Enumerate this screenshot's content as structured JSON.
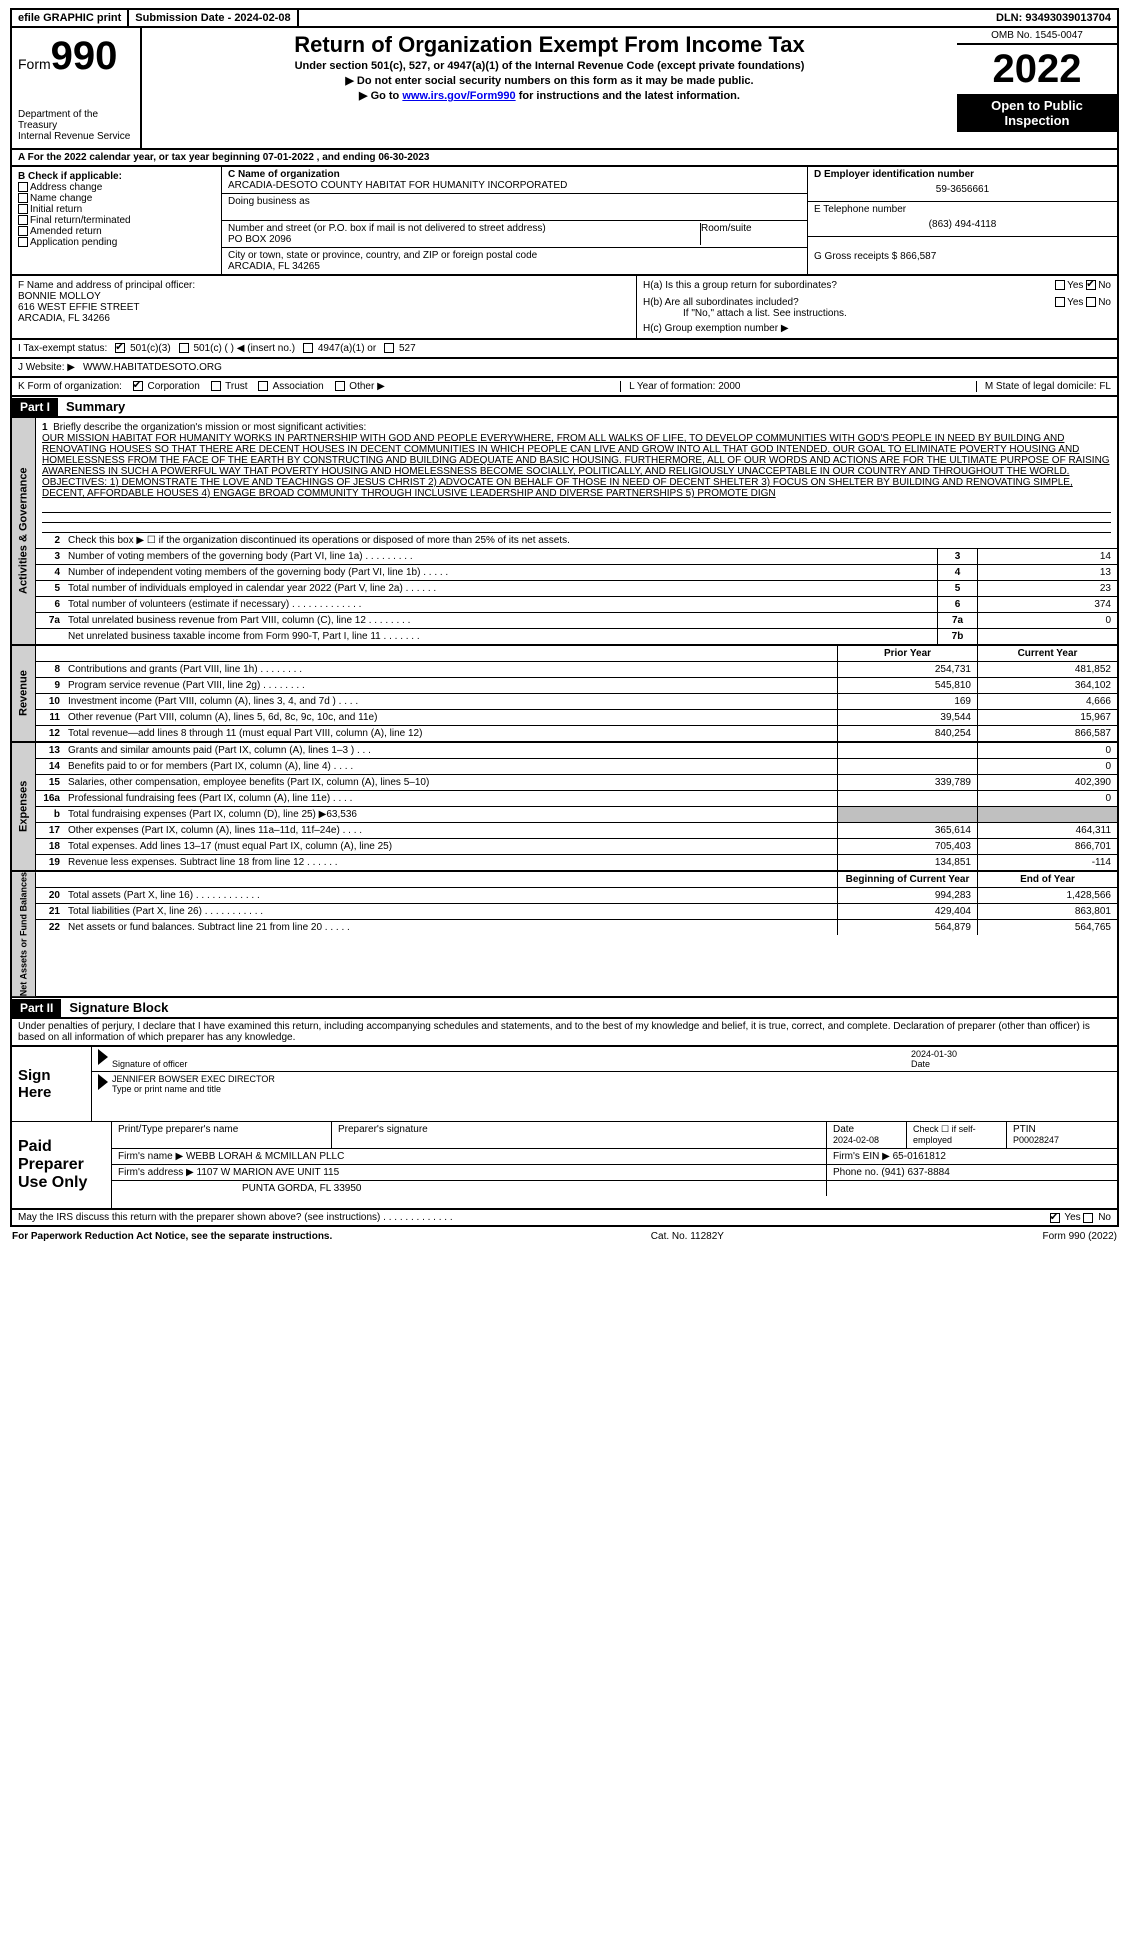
{
  "topbar": {
    "efile": "efile GRAPHIC print",
    "sub_label": "Submission Date - 2024-02-08",
    "dln": "DLN: 93493039013704"
  },
  "header": {
    "form_prefix": "Form",
    "form_num": "990",
    "dept": "Department of the Treasury",
    "irs": "Internal Revenue Service",
    "title": "Return of Organization Exempt From Income Tax",
    "sub1": "Under section 501(c), 527, or 4947(a)(1) of the Internal Revenue Code (except private foundations)",
    "sub2": "▶ Do not enter social security numbers on this form as it may be made public.",
    "sub3_pre": "▶ Go to ",
    "sub3_link": "www.irs.gov/Form990",
    "sub3_post": " for instructions and the latest information.",
    "omb": "OMB No. 1545-0047",
    "year": "2022",
    "open": "Open to Public Inspection"
  },
  "row_a": "A For the 2022 calendar year, or tax year beginning 07-01-2022   , and ending 06-30-2023",
  "b": {
    "label": "B Check if applicable:",
    "items": [
      "Address change",
      "Name change",
      "Initial return",
      "Final return/terminated",
      "Amended return",
      "Application pending"
    ]
  },
  "c": {
    "name_lbl": "C Name of organization",
    "name": "ARCADIA-DESOTO COUNTY HABITAT FOR HUMANITY INCORPORATED",
    "dba_lbl": "Doing business as",
    "dba": "",
    "addr_lbl": "Number and street (or P.O. box if mail is not delivered to street address)",
    "addr": "PO BOX 2096",
    "room_lbl": "Room/suite",
    "city_lbl": "City or town, state or province, country, and ZIP or foreign postal code",
    "city": "ARCADIA, FL  34265"
  },
  "d": {
    "lbl": "D Employer identification number",
    "val": "59-3656661"
  },
  "e": {
    "lbl": "E Telephone number",
    "val": "(863) 494-4118"
  },
  "g": {
    "lbl": "G Gross receipts $",
    "val": "866,587"
  },
  "f": {
    "lbl": "F  Name and address of principal officer:",
    "name": "BONNIE MOLLOY",
    "addr1": "616 WEST EFFIE STREET",
    "addr2": "ARCADIA, FL  34266"
  },
  "h": {
    "a_lbl": "H(a)  Is this a group return for subordinates?",
    "b_lbl": "H(b)  Are all subordinates included?",
    "b_note": "If \"No,\" attach a list. See instructions.",
    "c_lbl": "H(c)  Group exemption number ▶",
    "yes": "Yes",
    "no": "No"
  },
  "i": {
    "lbl": "I   Tax-exempt status:",
    "o1": "501(c)(3)",
    "o2": "501(c) (   ) ◀ (insert no.)",
    "o3": "4947(a)(1) or",
    "o4": "527"
  },
  "j": {
    "lbl": "J   Website: ▶",
    "val": "WWW.HABITATDESOTO.ORG"
  },
  "k": {
    "lbl": "K Form of organization:",
    "o1": "Corporation",
    "o2": "Trust",
    "o3": "Association",
    "o4": "Other ▶"
  },
  "l": {
    "lbl": "L Year of formation:",
    "val": "2000"
  },
  "m": {
    "lbl": "M State of legal domicile:",
    "val": "FL"
  },
  "part1": {
    "num": "Part I",
    "title": "Summary"
  },
  "summary": {
    "vtab1": "Activities & Governance",
    "vtab2": "Revenue",
    "vtab3": "Expenses",
    "vtab4": "Net Assets or Fund Balances",
    "line1_lbl": "Briefly describe the organization's mission or most significant activities:",
    "mission": "OUR MISSION HABITAT FOR HUMANITY WORKS IN PARTNERSHIP WITH GOD AND PEOPLE EVERYWHERE, FROM ALL WALKS OF LIFE, TO DEVELOP COMMUNITIES WITH GOD'S PEOPLE IN NEED BY BUILDING AND RENOVATING HOUSES SO THAT THERE ARE DECENT HOUSES IN DECENT COMMUNITIES IN WHICH PEOPLE CAN LIVE AND GROW INTO ALL THAT GOD INTENDED. OUR GOAL TO ELIMINATE POVERTY HOUSING AND HOMELESSNESS FROM THE FACE OF THE EARTH BY CONSTRUCTING AND BUILDING ADEQUATE AND BASIC HOUSING. FURTHERMORE, ALL OF OUR WORDS AND ACTIONS ARE FOR THE ULTIMATE PURPOSE OF RAISING AWARENESS IN SUCH A POWERFUL WAY THAT POVERTY HOUSING AND HOMELESSNESS BECOME SOCIALLY, POLITICALLY, AND RELIGIOUSLY UNACCEPTABLE IN OUR COUNTRY AND THROUGHOUT THE WORLD. OBJECTIVES: 1) DEMONSTRATE THE LOVE AND TEACHINGS OF JESUS CHRIST 2) ADVOCATE ON BEHALF OF THOSE IN NEED OF DECENT SHELTER 3) FOCUS ON SHELTER BY BUILDING AND RENOVATING SIMPLE, DECENT, AFFORDABLE HOUSES 4) ENGAGE BROAD COMMUNITY THROUGH INCLUSIVE LEADERSHIP AND DIVERSE PARTNERSHIPS 5) PROMOTE DIGN",
    "line2": "Check this box ▶ ☐ if the organization discontinued its operations or disposed of more than 25% of its net assets.",
    "rows_gov": [
      {
        "n": "3",
        "d": "Number of voting members of the governing body (Part VI, line 1a)  .   .   .   .   .   .   .   .   .",
        "c": "3",
        "v": "14"
      },
      {
        "n": "4",
        "d": "Number of independent voting members of the governing body (Part VI, line 1b)   .   .   .   .   .",
        "c": "4",
        "v": "13"
      },
      {
        "n": "5",
        "d": "Total number of individuals employed in calendar year 2022 (Part V, line 2a)   .   .   .   .   .   .",
        "c": "5",
        "v": "23"
      },
      {
        "n": "6",
        "d": "Total number of volunteers (estimate if necessary)  .   .   .   .   .   .   .   .   .   .   .   .   .",
        "c": "6",
        "v": "374"
      },
      {
        "n": "7a",
        "d": "Total unrelated business revenue from Part VIII, column (C), line 12   .   .   .   .   .   .   .   .",
        "c": "7a",
        "v": "0"
      },
      {
        "n": "",
        "d": "Net unrelated business taxable income from Form 990-T, Part I, line 11   .   .   .   .   .   .   .",
        "c": "7b",
        "v": ""
      }
    ],
    "hdr_prior": "Prior Year",
    "hdr_curr": "Current Year",
    "rows_rev": [
      {
        "n": "8",
        "d": "Contributions and grants (Part VIII, line 1h)   .   .   .   .   .   .   .   .",
        "p": "254,731",
        "c": "481,852"
      },
      {
        "n": "9",
        "d": "Program service revenue (Part VIII, line 2g)   .   .   .   .   .   .   .   .",
        "p": "545,810",
        "c": "364,102"
      },
      {
        "n": "10",
        "d": "Investment income (Part VIII, column (A), lines 3, 4, and 7d )   .   .   .   .",
        "p": "169",
        "c": "4,666"
      },
      {
        "n": "11",
        "d": "Other revenue (Part VIII, column (A), lines 5, 6d, 8c, 9c, 10c, and 11e)",
        "p": "39,544",
        "c": "15,967"
      },
      {
        "n": "12",
        "d": "Total revenue—add lines 8 through 11 (must equal Part VIII, column (A), line 12)",
        "p": "840,254",
        "c": "866,587"
      }
    ],
    "rows_exp": [
      {
        "n": "13",
        "d": "Grants and similar amounts paid (Part IX, column (A), lines 1–3 )  .   .   .",
        "p": "",
        "c": "0"
      },
      {
        "n": "14",
        "d": "Benefits paid to or for members (Part IX, column (A), line 4)  .   .   .   .",
        "p": "",
        "c": "0"
      },
      {
        "n": "15",
        "d": "Salaries, other compensation, employee benefits (Part IX, column (A), lines 5–10)",
        "p": "339,789",
        "c": "402,390"
      },
      {
        "n": "16a",
        "d": "Professional fundraising fees (Part IX, column (A), line 11e)  .   .   .   .",
        "p": "",
        "c": "0"
      },
      {
        "n": "b",
        "d": "Total fundraising expenses (Part IX, column (D), line 25) ▶63,536",
        "p": "grey",
        "c": "grey"
      },
      {
        "n": "17",
        "d": "Other expenses (Part IX, column (A), lines 11a–11d, 11f–24e)   .   .   .   .",
        "p": "365,614",
        "c": "464,311"
      },
      {
        "n": "18",
        "d": "Total expenses. Add lines 13–17 (must equal Part IX, column (A), line 25)",
        "p": "705,403",
        "c": "866,701"
      },
      {
        "n": "19",
        "d": "Revenue less expenses. Subtract line 18 from line 12  .   .   .   .   .   .",
        "p": "134,851",
        "c": "-114"
      }
    ],
    "hdr_beg": "Beginning of Current Year",
    "hdr_end": "End of Year",
    "rows_net": [
      {
        "n": "20",
        "d": "Total assets (Part X, line 16)  .   .   .   .   .   .   .   .   .   .   .   .",
        "p": "994,283",
        "c": "1,428,566"
      },
      {
        "n": "21",
        "d": "Total liabilities (Part X, line 26)  .   .   .   .   .   .   .   .   .   .   .",
        "p": "429,404",
        "c": "863,801"
      },
      {
        "n": "22",
        "d": "Net assets or fund balances. Subtract line 21 from line 20  .   .   .   .   .",
        "p": "564,879",
        "c": "564,765"
      }
    ]
  },
  "part2": {
    "num": "Part II",
    "title": "Signature Block"
  },
  "sig": {
    "penalty": "Under penalties of perjury, I declare that I have examined this return, including accompanying schedules and statements, and to the best of my knowledge and belief, it is true, correct, and complete. Declaration of preparer (other than officer) is based on all information of which preparer has any knowledge.",
    "sign_here": "Sign Here",
    "sig_officer": "Signature of officer",
    "date_lbl": "Date",
    "sig_date": "2024-01-30",
    "name": "JENNIFER BOWSER  EXEC DIRECTOR",
    "name_lbl": "Type or print name and title"
  },
  "paid": {
    "lbl": "Paid Preparer Use Only",
    "h1": "Print/Type preparer's name",
    "h2": "Preparer's signature",
    "h3": "Date",
    "h3v": "2024-02-08",
    "h4": "Check ☐ if self-employed",
    "h5": "PTIN",
    "h5v": "P00028247",
    "firm_name_lbl": "Firm's name    ▶",
    "firm_name": "WEBB LORAH & MCMILLAN PLLC",
    "firm_ein_lbl": "Firm's EIN ▶",
    "firm_ein": "65-0161812",
    "firm_addr_lbl": "Firm's address ▶",
    "firm_addr": "1107 W MARION AVE UNIT 115",
    "firm_addr2": "PUNTA GORDA, FL  33950",
    "phone_lbl": "Phone no.",
    "phone": "(941) 637-8884"
  },
  "discuss": {
    "q": "May the IRS discuss this return with the preparer shown above? (see instructions)   .   .   .   .   .   .   .   .   .   .   .   .   .",
    "yes": "Yes",
    "no": "No"
  },
  "foot": {
    "l": "For Paperwork Reduction Act Notice, see the separate instructions.",
    "m": "Cat. No. 11282Y",
    "r": "Form 990 (2022)"
  }
}
